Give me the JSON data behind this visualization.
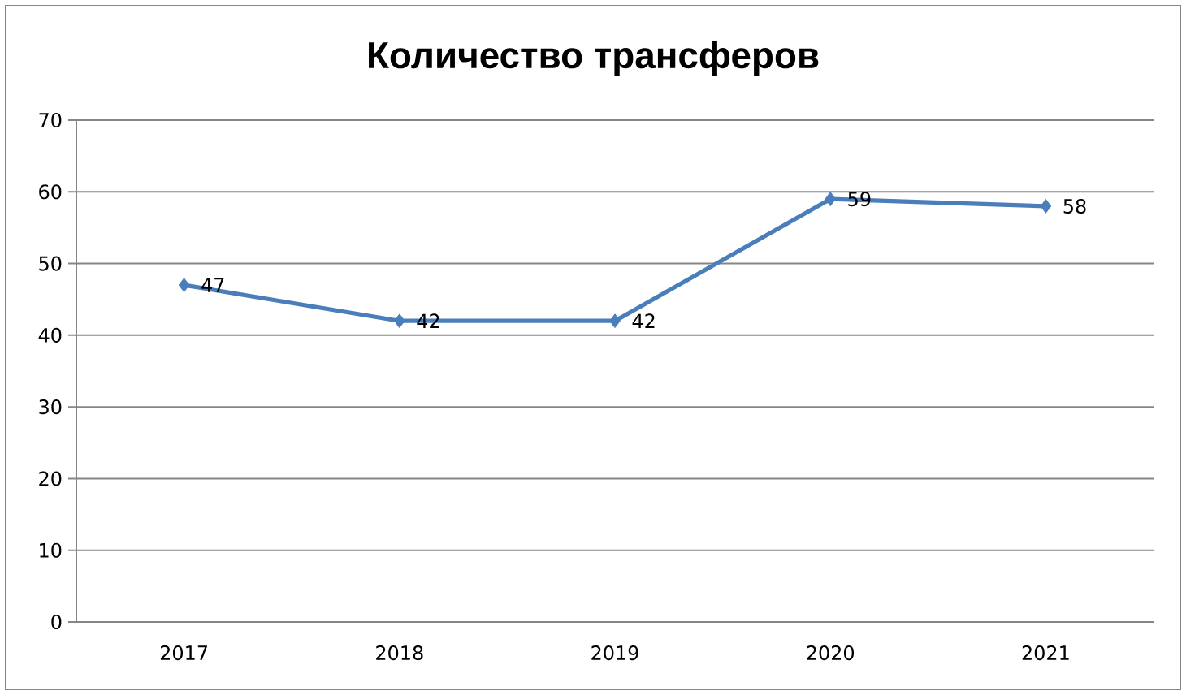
{
  "chart_data": {
    "type": "line",
    "title": "Количество трансферов",
    "categories": [
      "2017",
      "2018",
      "2019",
      "2020",
      "2021"
    ],
    "values": [
      47,
      42,
      42,
      59,
      58
    ],
    "color": "#4a7ebb",
    "ylim": [
      0,
      70
    ],
    "yticks": [
      0,
      10,
      20,
      30,
      40,
      50,
      60,
      70
    ],
    "grid": "y",
    "marker": "diamond",
    "line_style": "solid",
    "data_labels": true
  }
}
